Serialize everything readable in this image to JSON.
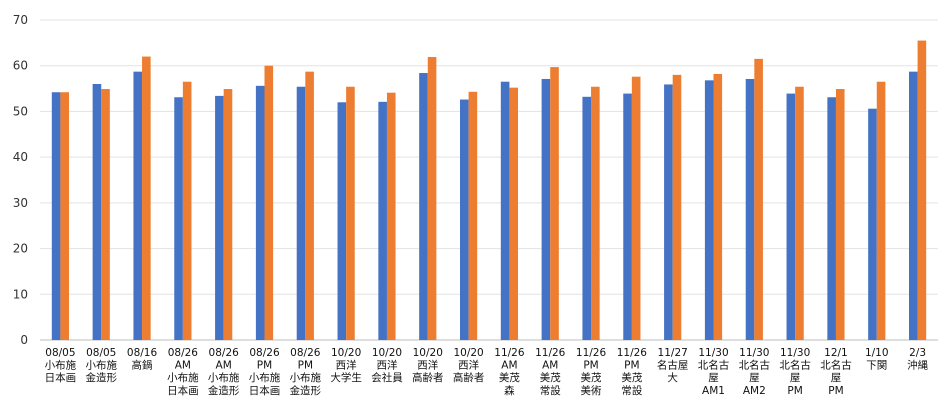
{
  "chart_data": {
    "type": "bar",
    "title": "",
    "xlabel": "",
    "ylabel": "",
    "ylim": [
      0,
      70
    ],
    "yticks": [
      0,
      10,
      20,
      30,
      40,
      50,
      60,
      70
    ],
    "grid": true,
    "legend": "none",
    "colors": [
      "#4472C4",
      "#ED7D31"
    ],
    "categories": [
      [
        "08/05",
        "小布施",
        "日本画"
      ],
      [
        "08/05",
        "小布施",
        "金造形"
      ],
      [
        "08/16",
        "高鍋"
      ],
      [
        "08/26",
        "AM",
        "小布施",
        "日本画"
      ],
      [
        "08/26",
        "AM",
        "小布施",
        "金造形"
      ],
      [
        "08/26",
        "PM",
        "小布施",
        "日本画"
      ],
      [
        "08/26",
        "PM",
        "小布施",
        "金造形"
      ],
      [
        "10/20",
        "西洋",
        "大学生"
      ],
      [
        "10/20",
        "西洋",
        "会社員"
      ],
      [
        "10/20",
        "西洋",
        "高齢者"
      ],
      [
        "10/20",
        "西洋",
        "高齢者"
      ],
      [
        "11/26",
        "AM",
        "美茂",
        "森"
      ],
      [
        "11/26",
        "AM",
        "美茂",
        "常設"
      ],
      [
        "11/26",
        "PM",
        "美茂",
        "美術"
      ],
      [
        "11/26",
        "PM",
        "美茂",
        "常設"
      ],
      [
        "11/27",
        "名古屋",
        "大"
      ],
      [
        "11/30",
        "北名古",
        "屋",
        "AM1"
      ],
      [
        "11/30",
        "北名古",
        "屋",
        "AM2"
      ],
      [
        "11/30",
        "北名古",
        "屋",
        "PM"
      ],
      [
        "12/1",
        "北名古",
        "屋",
        "PM"
      ],
      [
        "1/10",
        "下関"
      ],
      [
        "2/3",
        "沖縄"
      ]
    ],
    "series": [
      {
        "color": "#4472C4",
        "values": [
          54.2,
          56.0,
          58.7,
          53.1,
          53.4,
          55.6,
          55.4,
          52.0,
          52.1,
          58.4,
          52.6,
          56.5,
          57.1,
          53.2,
          53.9,
          55.9,
          56.8,
          57.1,
          53.9,
          53.1,
          50.6,
          58.7
        ]
      },
      {
        "color": "#ED7D31",
        "values": [
          54.2,
          54.9,
          62.0,
          56.5,
          54.9,
          60.0,
          58.7,
          55.4,
          54.1,
          61.9,
          54.3,
          55.2,
          59.7,
          55.4,
          57.6,
          58.0,
          58.2,
          61.5,
          55.4,
          54.9,
          56.5,
          65.5
        ]
      }
    ]
  }
}
